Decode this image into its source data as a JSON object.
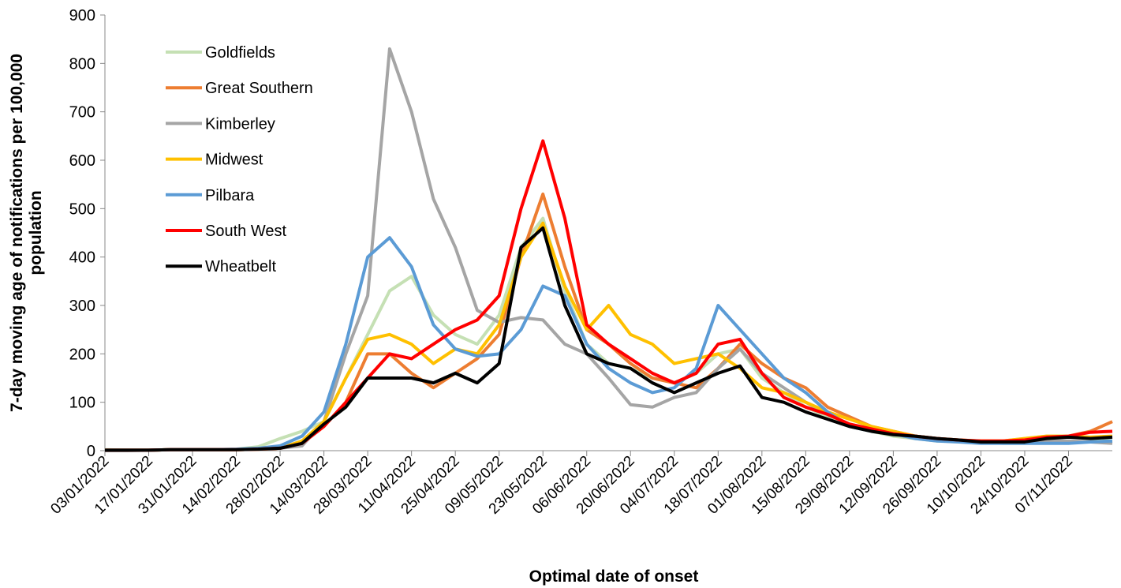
{
  "chart_data": {
    "type": "line",
    "xlabel": "Optimal date of onset",
    "ylabel": [
      "7-day moving age of notifications  per 100,000",
      "population"
    ],
    "x": [
      "03/01/2022",
      "10/01/2022",
      "17/01/2022",
      "24/01/2022",
      "31/01/2022",
      "07/02/2022",
      "14/02/2022",
      "21/02/2022",
      "28/02/2022",
      "07/03/2022",
      "14/03/2022",
      "21/03/2022",
      "28/03/2022",
      "04/04/2022",
      "11/04/2022",
      "18/04/2022",
      "25/04/2022",
      "02/05/2022",
      "09/05/2022",
      "16/05/2022",
      "23/05/2022",
      "30/05/2022",
      "06/06/2022",
      "13/06/2022",
      "20/06/2022",
      "27/06/2022",
      "04/07/2022",
      "11/07/2022",
      "18/07/2022",
      "25/07/2022",
      "01/08/2022",
      "08/08/2022",
      "15/08/2022",
      "22/08/2022",
      "29/08/2022",
      "05/09/2022",
      "12/09/2022",
      "19/09/2022",
      "26/09/2022",
      "03/10/2022",
      "10/10/2022",
      "17/10/2022",
      "24/10/2022",
      "31/10/2022",
      "07/11/2022",
      "14/11/2022",
      "21/11/2022"
    ],
    "xticks": [
      "03/01/2022",
      "17/01/2022",
      "31/01/2022",
      "14/02/2022",
      "28/02/2022",
      "14/03/2022",
      "28/03/2022",
      "11/04/2022",
      "25/04/2022",
      "09/05/2022",
      "23/05/2022",
      "06/06/2022",
      "20/06/2022",
      "04/07/2022",
      "18/07/2022",
      "01/08/2022",
      "15/08/2022",
      "29/08/2022",
      "12/09/2022",
      "26/09/2022",
      "10/10/2022",
      "24/10/2022",
      "07/11/2022"
    ],
    "ylim": [
      0,
      900
    ],
    "yticks": [
      0,
      100,
      200,
      300,
      400,
      500,
      600,
      700,
      800,
      900
    ],
    "legend": "top-left",
    "series": [
      {
        "name": "Goldfields",
        "color": "#c5e0b4",
        "values": [
          2,
          1,
          1,
          2,
          2,
          2,
          3,
          8,
          25,
          40,
          60,
          150,
          240,
          330,
          360,
          280,
          240,
          220,
          280,
          420,
          480,
          330,
          220,
          180,
          170,
          150,
          140,
          160,
          200,
          210,
          150,
          120,
          90,
          70,
          50,
          40,
          30,
          25,
          20,
          20,
          20,
          20,
          25,
          30,
          30,
          25,
          20
        ]
      },
      {
        "name": "Great Southern",
        "color": "#ed7d31",
        "values": [
          1,
          1,
          1,
          2,
          2,
          2,
          2,
          3,
          5,
          15,
          50,
          100,
          200,
          200,
          160,
          130,
          160,
          190,
          240,
          400,
          530,
          380,
          250,
          220,
          180,
          150,
          140,
          130,
          170,
          220,
          180,
          150,
          130,
          90,
          70,
          50,
          40,
          30,
          25,
          20,
          20,
          20,
          20,
          25,
          30,
          40,
          60
        ]
      },
      {
        "name": "Kimberley",
        "color": "#a5a5a5",
        "values": [
          0,
          0,
          1,
          2,
          2,
          2,
          2,
          3,
          5,
          10,
          60,
          200,
          320,
          830,
          700,
          520,
          420,
          290,
          265,
          275,
          270,
          220,
          200,
          150,
          95,
          90,
          110,
          120,
          170,
          210,
          160,
          130,
          100,
          75,
          55,
          45,
          35,
          30,
          25,
          20,
          18,
          15,
          15,
          20,
          20,
          18,
          15
        ]
      },
      {
        "name": "Midwest",
        "color": "#ffc000",
        "values": [
          1,
          1,
          1,
          2,
          2,
          2,
          2,
          3,
          5,
          20,
          60,
          150,
          230,
          240,
          220,
          180,
          210,
          200,
          260,
          400,
          470,
          340,
          250,
          300,
          240,
          220,
          180,
          190,
          200,
          170,
          130,
          120,
          100,
          80,
          65,
          50,
          40,
          30,
          25,
          22,
          20,
          20,
          25,
          30,
          30,
          28,
          30
        ]
      },
      {
        "name": "Pilbara",
        "color": "#5b9bd5",
        "values": [
          1,
          1,
          1,
          2,
          2,
          2,
          3,
          5,
          10,
          30,
          80,
          220,
          400,
          440,
          380,
          260,
          210,
          195,
          200,
          250,
          340,
          320,
          220,
          170,
          140,
          120,
          130,
          170,
          300,
          250,
          200,
          150,
          120,
          80,
          50,
          40,
          35,
          25,
          20,
          18,
          15,
          15,
          15,
          15,
          15,
          18,
          20
        ]
      },
      {
        "name": "South West",
        "color": "#ff0000",
        "values": [
          1,
          1,
          1,
          2,
          2,
          2,
          2,
          3,
          5,
          15,
          50,
          100,
          150,
          200,
          190,
          220,
          250,
          270,
          320,
          500,
          640,
          480,
          260,
          220,
          190,
          160,
          140,
          160,
          220,
          230,
          160,
          110,
          90,
          75,
          55,
          45,
          35,
          30,
          25,
          22,
          20,
          20,
          22,
          28,
          30,
          38,
          40
        ]
      },
      {
        "name": "Wheatbelt",
        "color": "#000000",
        "values": [
          1,
          1,
          1,
          2,
          2,
          2,
          2,
          3,
          5,
          15,
          55,
          90,
          150,
          150,
          150,
          140,
          160,
          140,
          180,
          420,
          460,
          300,
          200,
          180,
          170,
          140,
          120,
          140,
          160,
          175,
          110,
          100,
          80,
          65,
          50,
          40,
          33,
          30,
          25,
          22,
          18,
          18,
          18,
          25,
          28,
          25,
          28
        ]
      }
    ]
  }
}
